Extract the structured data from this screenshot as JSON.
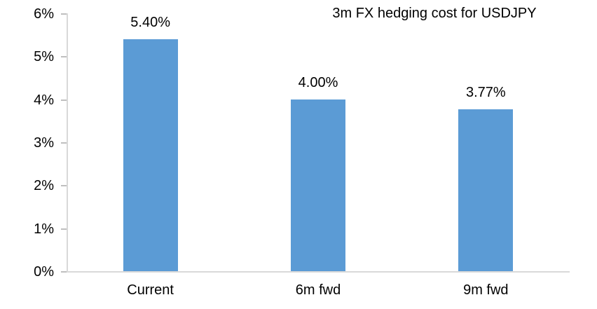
{
  "chart_data": {
    "type": "bar",
    "title": "3m FX hedging cost for USDJPY",
    "categories": [
      "Current",
      "6m fwd",
      "9m fwd"
    ],
    "values": [
      5.4,
      4.0,
      3.77
    ],
    "value_labels": [
      "5.40%",
      "4.00%",
      "3.77%"
    ],
    "xlabel": "",
    "ylabel": "",
    "ylim": [
      0,
      6
    ],
    "ytick_values": [
      0,
      1,
      2,
      3,
      4,
      5,
      6
    ],
    "ytick_labels": [
      "0%",
      "1%",
      "2%",
      "3%",
      "4%",
      "5%",
      "6%"
    ],
    "grid": "off",
    "legend": "none",
    "bar_color": "#5b9bd5",
    "axis_line_color": "#d9d9d9",
    "tick_color": "#bfbfbf",
    "text_color": "#000000"
  }
}
